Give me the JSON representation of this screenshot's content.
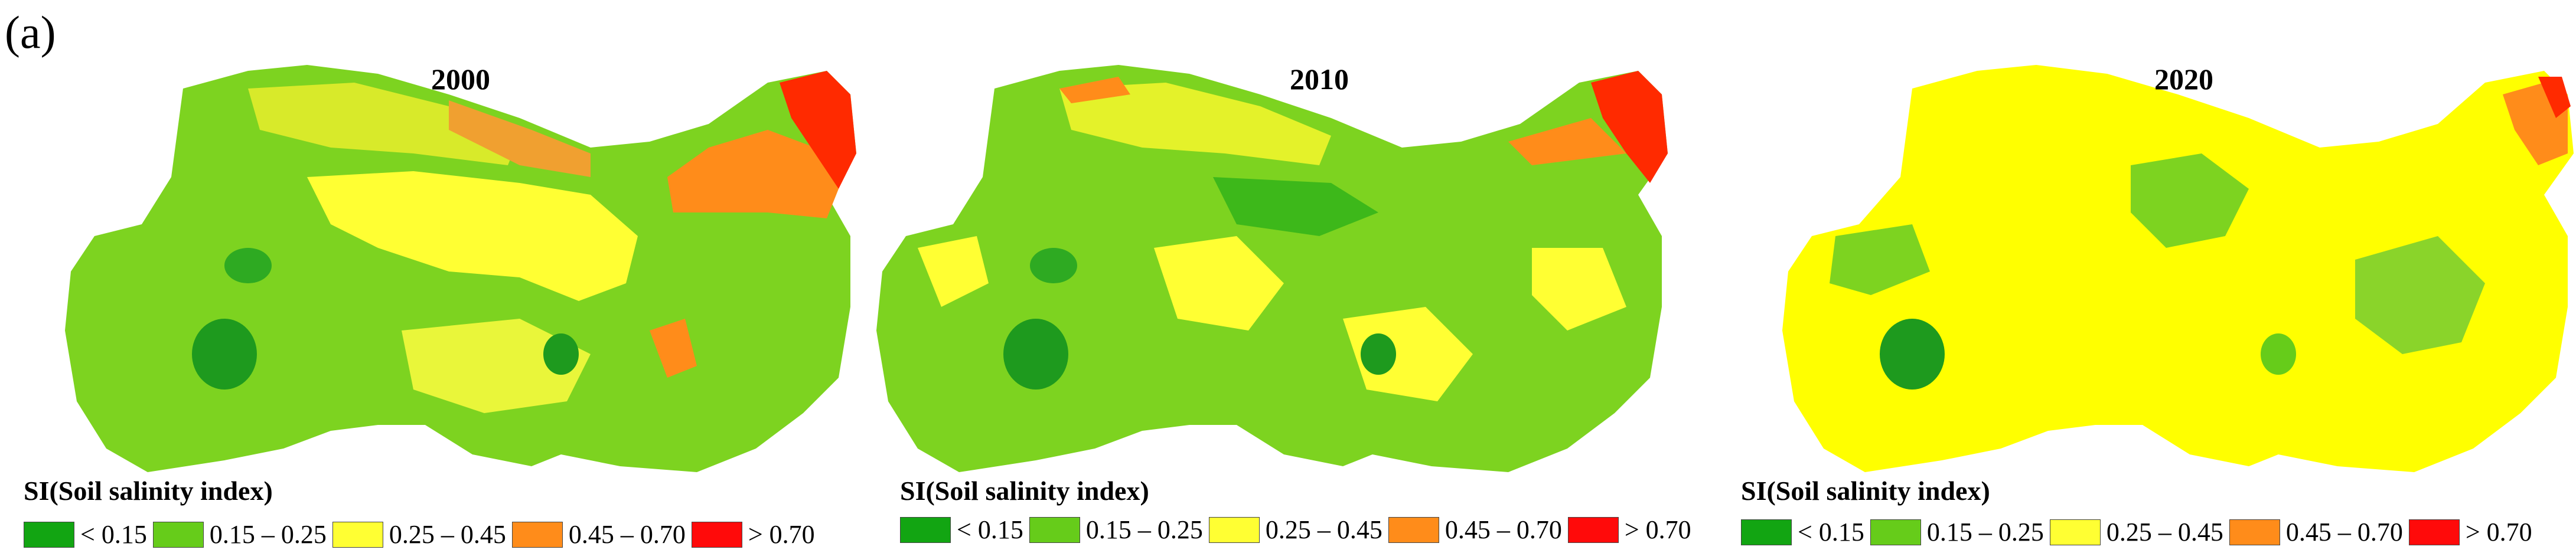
{
  "figure": {
    "panel_label": "(a)"
  },
  "maps": [
    {
      "year": "2000",
      "legend_title": "SI(Soil salinity index)",
      "dominant": "#7dd320",
      "regions": [
        "#7dd320",
        "#ffff00",
        "#3db81a",
        "#ff8c1a",
        "#ff2a00",
        "#2ea91a"
      ]
    },
    {
      "year": "2010",
      "legend_title": "SI(Soil salinity index)",
      "dominant": "#7dd320",
      "regions": [
        "#7dd320",
        "#ffff00",
        "#3db81a",
        "#ff8c1a",
        "#ff2a00",
        "#2ea91a"
      ]
    },
    {
      "year": "2020",
      "legend_title": "SI(Soil salinity index)",
      "dominant": "#ffff00",
      "regions": [
        "#ffff00",
        "#7dd320",
        "#3db81a",
        "#ff8c1a",
        "#ff2a00",
        "#2ea91a"
      ]
    }
  ],
  "legend": [
    {
      "label": "< 0.15",
      "color": "#12a512"
    },
    {
      "label": "0.15 – 0.25",
      "color": "#66cc1a"
    },
    {
      "label": "0.25 – 0.45",
      "color": "#ffff33"
    },
    {
      "label": "0.45 – 0.70",
      "color": "#ff8c1a"
    },
    {
      "label": "> 0.70",
      "color": "#ff0a0a"
    }
  ]
}
